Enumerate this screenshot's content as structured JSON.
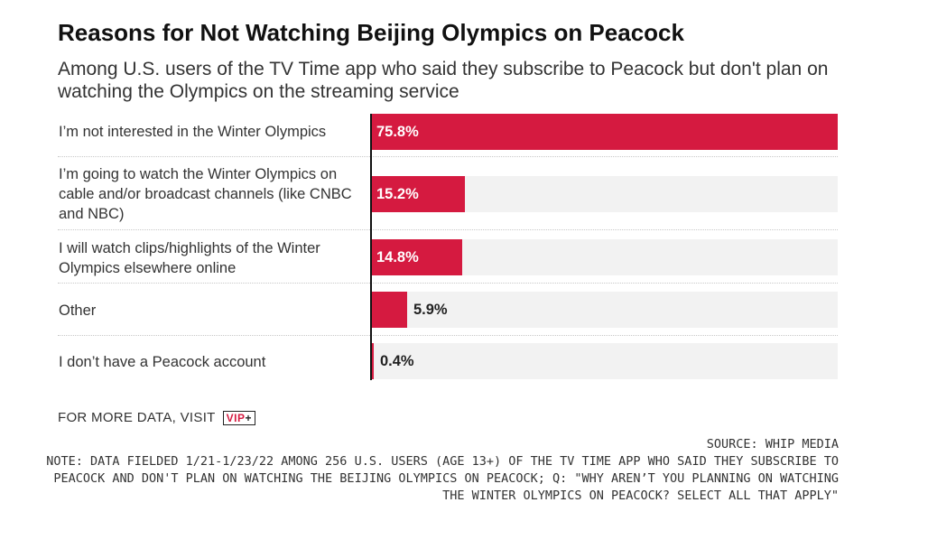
{
  "header": {
    "title": "Reasons for Not Watching Beijing Olympics on Peacock",
    "subtitle": "Among U.S. users of the TV Time app who said they subscribe to Peacock but don't plan on watching the Olympics on the streaming service"
  },
  "chart_data": {
    "type": "bar",
    "orientation": "horizontal",
    "title": "Reasons for Not Watching Beijing Olympics on Peacock",
    "subtitle": "Among U.S. users of the TV Time app who said they subscribe to Peacock but don't plan on watching the Olympics on the streaming service",
    "categories": [
      "I’m not interested in the Winter Olympics",
      "I’m going to watch the Winter Olympics on cable and/or broadcast channels (like CNBC and NBC)",
      "I will watch clips/highlights of the Winter Olympics elsewhere online",
      "Other",
      "I don’t have a Peacock account"
    ],
    "values": [
      75.8,
      15.2,
      14.8,
      5.9,
      0.4
    ],
    "value_labels": [
      "75.8%",
      "15.2%",
      "14.8%",
      "5.9%",
      "0.4%"
    ],
    "unit": "%",
    "xlim": [
      0,
      75.8
    ],
    "grid": false,
    "bar_color": "#d51a40",
    "track_color": "#f2f2f2"
  },
  "footer": {
    "more_data": "FOR MORE DATA, VISIT",
    "badge_main": "VIP",
    "badge_plus": "+",
    "source": "SOURCE: WHIP MEDIA",
    "note": "NOTE: DATA FIELDED 1/21-1/23/22 AMONG 256 U.S. USERS (AGE 13+) OF THE TV TIME APP WHO SAID THEY SUBSCRIBE TO PEACOCK AND DON'T PLAN ON WATCHING THE BEIJING OLYMPICS ON PEACOCK; Q: \"WHY AREN’T YOU PLANNING ON WATCHING THE WINTER OLYMPICS ON PEACOCK? SELECT ALL THAT APPLY\""
  },
  "colors": {
    "accent": "#d51a40",
    "text": "#333333"
  }
}
